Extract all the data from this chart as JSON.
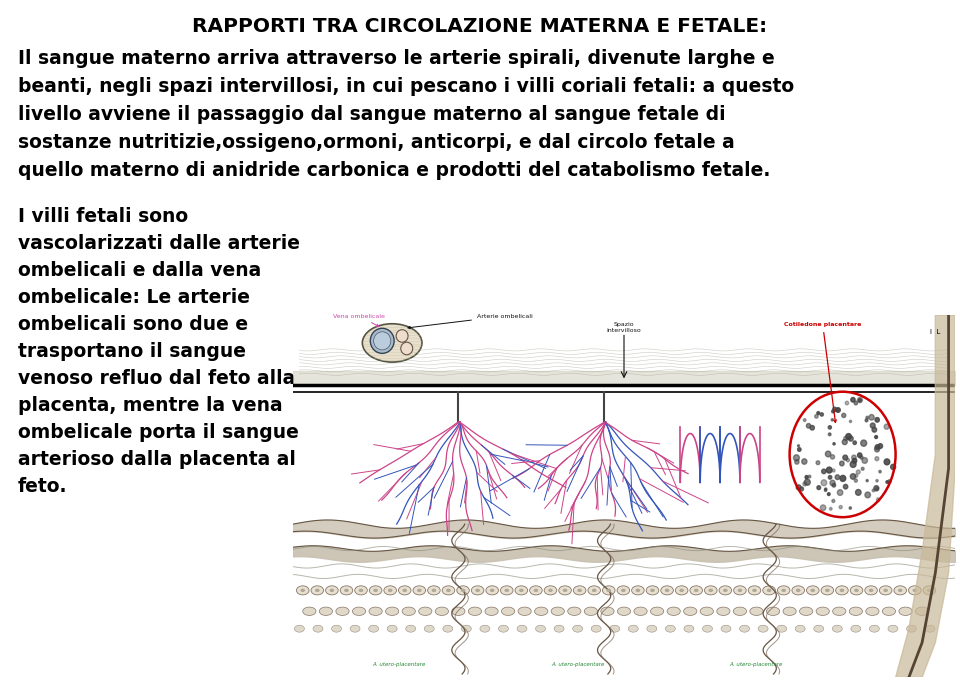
{
  "title": "RAPPORTI TRA CIRCOLAZIONE MATERNA E FETALE:",
  "title_fontsize": 14.5,
  "p1_lines": [
    "Il sangue materno arriva attraverso le arterie spirali, divenute larghe e",
    "beanti, negli spazi intervillosi, in cui pescano i villi coriali fetali: a questo",
    "livello avviene il passaggio dal sangue materno al sangue fetale di",
    "sostanze nutritizie,ossigeno,ormoni, anticorpi, e dal circolo fetale a",
    "quello materno di anidride carbonica e prodotti del catabolismo fetale."
  ],
  "p1_fontsize": 13.5,
  "p2_lines": [
    "I villi fetali sono",
    "vascolarizzati dalle arterie",
    "ombelicali e dalla vena",
    "ombelicale: Le arterie",
    "ombelicali sono due e",
    "trasportano il sangue",
    "venoso refluo dal feto alla",
    "placenta, mentre la vena",
    "ombelicale porta il sangue",
    "arterioso dalla placenta al",
    "feto."
  ],
  "p2_fontsize": 13.5,
  "bg_color": "#ffffff",
  "text_color": "#000000",
  "label_vena": "Vena ombelicale",
  "label_arterie": "Arterie ombelicali",
  "label_spazio": "Spazio\nintervilloso",
  "label_cotiledone": "Cotiledone placentare",
  "label_utero1": "A. utero-placentare",
  "label_utero2": "A. utero-placentare",
  "label_utero3": "A. utero-placentare",
  "label_IL": "I   L",
  "color_vena_label": "#cc44aa",
  "color_cotiledone": "#cc0000",
  "color_utero": "#228833",
  "color_pink": "#cc4488",
  "color_blue": "#3355bb",
  "color_black": "#111111",
  "color_gray": "#888888",
  "color_lightgray": "#dddddd",
  "color_skin": "#e8ddd0"
}
